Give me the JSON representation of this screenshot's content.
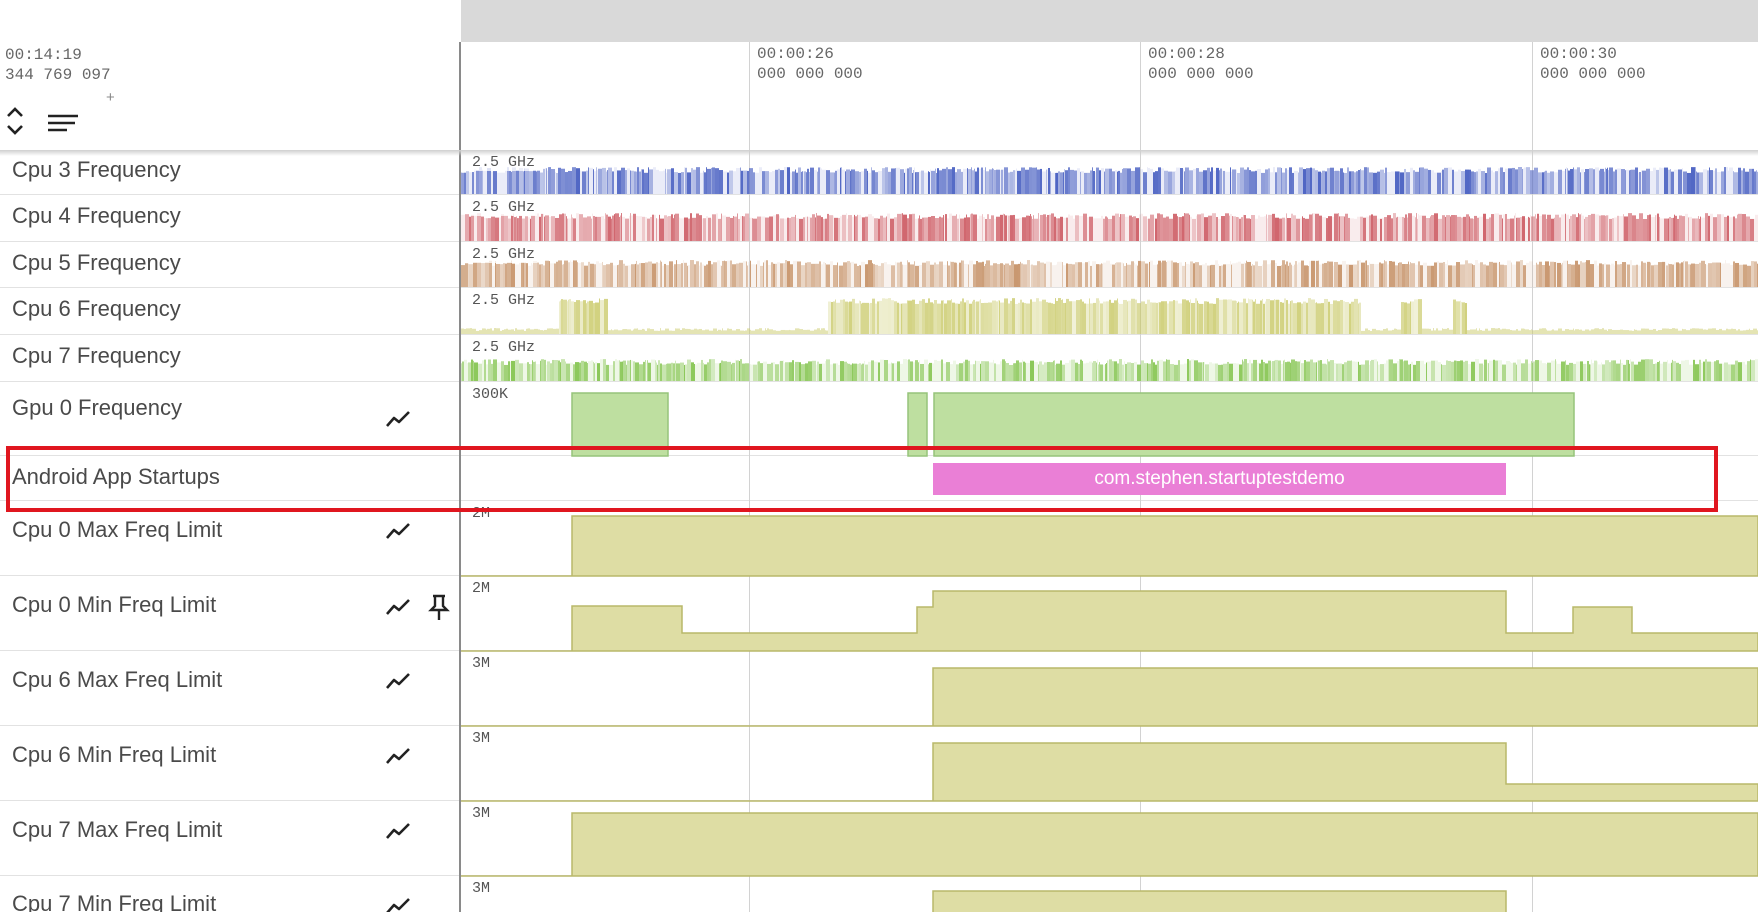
{
  "colors": {
    "cpu3": "#5066c4",
    "cpu4": "#d0646c",
    "cpu5": "#c99870",
    "cpu6": "#c9c968",
    "cpu7": "#8cc85a",
    "gpu": "#bedfa0",
    "freq_limit": "#dedda4",
    "startup_slice": "#ea7fd6",
    "highlight": "#e0161f",
    "header_bar": "#d9d9d9"
  },
  "header": {
    "cursor_time": "00:14:19",
    "cursor_time_ns": "344 769 097",
    "plus_label": "+",
    "icons": [
      "expand-collapse-icon",
      "filter-lines-icon"
    ],
    "ruler": [
      {
        "time": "00:00:26",
        "ns": "000 000 000"
      },
      {
        "time": "00:00:28",
        "ns": "000 000 000"
      },
      {
        "time": "00:00:30",
        "ns": "000 000 000"
      }
    ]
  },
  "tracks": [
    {
      "name": "Cpu 3 Frequency",
      "y_label": "2.5 GHz"
    },
    {
      "name": "Cpu 4 Frequency",
      "y_label": "2.5 GHz"
    },
    {
      "name": "Cpu 5 Frequency",
      "y_label": "2.5 GHz"
    },
    {
      "name": "Cpu 6 Frequency",
      "y_label": "2.5 GHz"
    },
    {
      "name": "Cpu 7 Frequency",
      "y_label": "2.5 GHz"
    },
    {
      "name": "Gpu 0 Frequency",
      "y_label": "300K",
      "icons": [
        "chart-line-icon"
      ]
    },
    {
      "name": "Android App Startups",
      "slice_label": "com.stephen.startuptestdemo"
    },
    {
      "name": "Cpu 0 Max Freq Limit",
      "y_label": "2M",
      "icons": [
        "chart-line-icon"
      ]
    },
    {
      "name": "Cpu 0 Min Freq Limit",
      "y_label": "2M",
      "icons": [
        "chart-line-icon",
        "pin-icon"
      ]
    },
    {
      "name": "Cpu 6 Max Freq Limit",
      "y_label": "3M",
      "icons": [
        "chart-line-icon"
      ]
    },
    {
      "name": "Cpu 6 Min Freq Limit",
      "y_label": "3M",
      "icons": [
        "chart-line-icon"
      ]
    },
    {
      "name": "Cpu 7 Max Freq Limit",
      "y_label": "3M",
      "icons": [
        "chart-line-icon"
      ]
    },
    {
      "name": "Cpu 7 Min Freq Limit",
      "y_label": "3M",
      "icons": [
        "chart-line-icon"
      ]
    }
  ]
}
